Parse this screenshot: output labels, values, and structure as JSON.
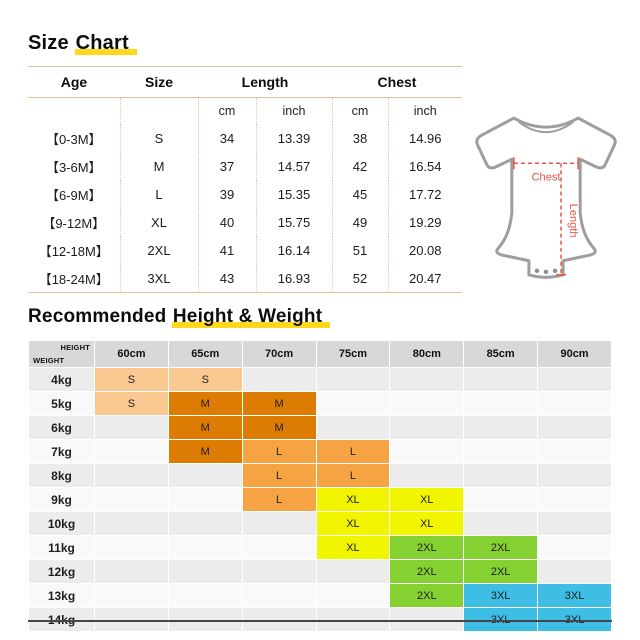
{
  "size_chart": {
    "title_prefix": "Size ",
    "title_highlight": "Chart",
    "headers": {
      "age": "Age",
      "size": "Size",
      "length": "Length",
      "chest": "Chest",
      "cm": "cm",
      "inch": "inch"
    }
  },
  "figure": {
    "chest_label": "Chest",
    "length_label": "Length"
  },
  "height_weight": {
    "title_prefix": "Recommended ",
    "title_highlight": "Height & Weight",
    "corner_top": "HEIGHT",
    "corner_bottom": "WEIGHT",
    "size_colors": {
      "S": "#F9C891",
      "M": "#DD7C02",
      "L": "#F6A443",
      "XL": "#F2F500",
      "2XL": "#85D131",
      "3XL": "#3EBEE4"
    }
  },
  "colors": {
    "highlight_yellow": "#FFD81C",
    "table_line_tan": "#E2C49A",
    "measure_red": "#E25749",
    "header_gray": "#D8D8D8",
    "row_even": "#ECECEC",
    "row_odd": "#F9F9F9"
  },
  "chart_data": [
    {
      "type": "table",
      "title": "Size Chart",
      "columns": [
        "Age",
        "Size",
        "Length cm",
        "Length inch",
        "Chest cm",
        "Chest inch"
      ],
      "rows": [
        [
          "【0-3M】",
          "S",
          "34",
          "13.39",
          "38",
          "14.96"
        ],
        [
          "【3-6M】",
          "M",
          "37",
          "14.57",
          "42",
          "16.54"
        ],
        [
          "【6-9M】",
          "L",
          "39",
          "15.35",
          "45",
          "17.72"
        ],
        [
          "【9-12M】",
          "XL",
          "40",
          "15.75",
          "49",
          "19.29"
        ],
        [
          "【12-18M】",
          "2XL",
          "41",
          "16.14",
          "51",
          "20.08"
        ],
        [
          "【18-24M】",
          "3XL",
          "43",
          "16.93",
          "52",
          "20.47"
        ]
      ]
    },
    {
      "type": "table",
      "title": "Recommended Height & Weight",
      "columns": [
        "60cm",
        "65cm",
        "70cm",
        "75cm",
        "80cm",
        "85cm",
        "90cm"
      ],
      "rows": [
        [
          "4kg",
          "S",
          "S",
          "",
          "",
          "",
          "",
          ""
        ],
        [
          "5kg",
          "S",
          "M",
          "M",
          "",
          "",
          "",
          ""
        ],
        [
          "6kg",
          "",
          "M",
          "M",
          "",
          "",
          "",
          ""
        ],
        [
          "7kg",
          "",
          "M",
          "L",
          "L",
          "",
          "",
          ""
        ],
        [
          "8kg",
          "",
          "",
          "L",
          "L",
          "",
          "",
          ""
        ],
        [
          "9kg",
          "",
          "",
          "L",
          "XL",
          "XL",
          "",
          ""
        ],
        [
          "10kg",
          "",
          "",
          "",
          "XL",
          "XL",
          "",
          ""
        ],
        [
          "11kg",
          "",
          "",
          "",
          "XL",
          "2XL",
          "2XL",
          ""
        ],
        [
          "12kg",
          "",
          "",
          "",
          "",
          "2XL",
          "2XL",
          ""
        ],
        [
          "13kg",
          "",
          "",
          "",
          "",
          "2XL",
          "3XL",
          "3XL"
        ],
        [
          "14kg",
          "",
          "",
          "",
          "",
          "",
          "3XL",
          "3XL"
        ]
      ]
    }
  ]
}
